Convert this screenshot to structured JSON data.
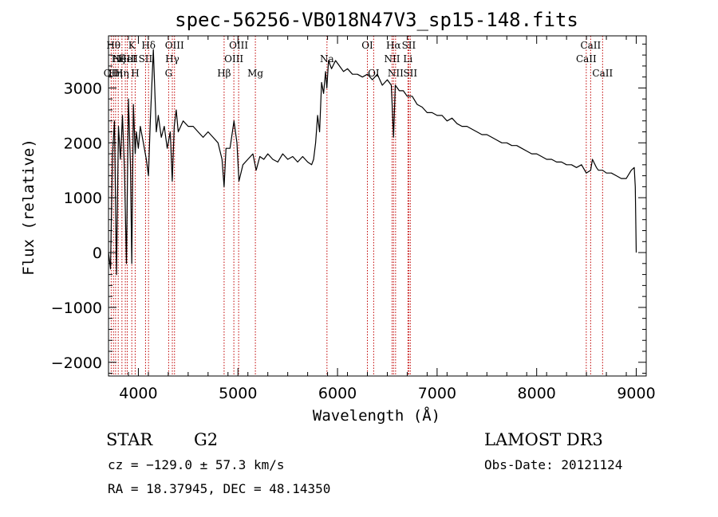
{
  "chart_data": {
    "type": "line",
    "title": "spec-56256-VB018N47V3_sp15-148.fits",
    "xlabel": "Wavelength (Å)",
    "ylabel": "Flux (relative)",
    "xlim": [
      3700,
      9100
    ],
    "ylim": [
      -2250,
      3950
    ],
    "x_ticks": [
      4000,
      5000,
      6000,
      7000,
      8000,
      9000
    ],
    "y_ticks": [
      -2000,
      -1000,
      0,
      1000,
      2000,
      3000
    ],
    "x_minor_step": 200,
    "y_minor_step": 200,
    "grid": false,
    "series": [
      {
        "name": "flux",
        "x": [
          3700,
          3720,
          3740,
          3760,
          3780,
          3800,
          3820,
          3840,
          3860,
          3880,
          3900,
          3920,
          3934,
          3950,
          3968,
          3980,
          4000,
          4020,
          4050,
          4080,
          4101,
          4120,
          4150,
          4180,
          4200,
          4230,
          4260,
          4290,
          4320,
          4340,
          4360,
          4380,
          4400,
          4450,
          4500,
          4550,
          4600,
          4650,
          4700,
          4750,
          4800,
          4840,
          4861,
          4880,
          4920,
          4960,
          4990,
          5010,
          5050,
          5100,
          5150,
          5183,
          5220,
          5260,
          5300,
          5350,
          5400,
          5450,
          5500,
          5550,
          5600,
          5650,
          5700,
          5740,
          5760,
          5780,
          5800,
          5820,
          5840,
          5860,
          5880,
          5893,
          5910,
          5940,
          5980,
          6020,
          6060,
          6100,
          6150,
          6200,
          6250,
          6300,
          6350,
          6400,
          6450,
          6500,
          6540,
          6563,
          6580,
          6620,
          6660,
          6700,
          6750,
          6800,
          6850,
          6900,
          6950,
          7000,
          7050,
          7100,
          7150,
          7200,
          7250,
          7300,
          7350,
          7400,
          7450,
          7500,
          7550,
          7600,
          7650,
          7700,
          7750,
          7800,
          7850,
          7900,
          7950,
          8000,
          8050,
          8100,
          8150,
          8200,
          8250,
          8300,
          8350,
          8400,
          8450,
          8498,
          8542,
          8560,
          8600,
          8620,
          8662,
          8700,
          8750,
          8800,
          8850,
          8900,
          8950,
          8980,
          8990,
          9000
        ],
        "values": [
          0,
          -300,
          1800,
          2400,
          -400,
          2300,
          1700,
          2500,
          1500,
          -200,
          2800,
          1600,
          -200,
          2700,
          1800,
          2200,
          1900,
          2300,
          2000,
          1700,
          1400,
          2400,
          3700,
          2200,
          2500,
          2100,
          2300,
          1900,
          2200,
          1300,
          2300,
          2600,
          2200,
          2400,
          2300,
          2300,
          2200,
          2100,
          2200,
          2100,
          2000,
          1700,
          1200,
          1900,
          1900,
          2400,
          2000,
          1300,
          1600,
          1700,
          1800,
          1500,
          1750,
          1700,
          1800,
          1700,
          1650,
          1800,
          1700,
          1750,
          1650,
          1750,
          1650,
          1600,
          1700,
          2000,
          2500,
          2200,
          3100,
          2900,
          3300,
          3000,
          3500,
          3350,
          3500,
          3400,
          3300,
          3350,
          3250,
          3250,
          3200,
          3250,
          3150,
          3250,
          3050,
          3150,
          3050,
          2100,
          3050,
          2950,
          2950,
          2850,
          2850,
          2700,
          2650,
          2550,
          2550,
          2500,
          2500,
          2400,
          2450,
          2350,
          2300,
          2300,
          2250,
          2200,
          2150,
          2150,
          2100,
          2050,
          2000,
          2000,
          1950,
          1950,
          1900,
          1850,
          1800,
          1800,
          1750,
          1700,
          1700,
          1650,
          1650,
          1600,
          1600,
          1550,
          1600,
          1450,
          1500,
          1700,
          1550,
          1500,
          1500,
          1450,
          1450,
          1400,
          1350,
          1350,
          1500,
          1550,
          1200,
          0
        ]
      }
    ],
    "line_markers": [
      {
        "w": 3727,
        "label": "OII",
        "row": 3
      },
      {
        "w": 3750,
        "label": "Hθ",
        "row": 1
      },
      {
        "w": 3771,
        "label": "Hη",
        "row": 3
      },
      {
        "w": 3798,
        "label": "Hζ",
        "row": 2
      },
      {
        "w": 3835,
        "label": "Hη",
        "row": 3
      },
      {
        "w": 3869,
        "label": "NeIII",
        "row": 2
      },
      {
        "w": 3889,
        "label": "HeI",
        "row": 2
      },
      {
        "w": 3934,
        "label": "K",
        "row": 1
      },
      {
        "w": 3968,
        "label": "H",
        "row": 3
      },
      {
        "w": 4072,
        "label": "SII",
        "row": 2
      },
      {
        "w": 4102,
        "label": "Hδ",
        "row": 1
      },
      {
        "w": 4304,
        "label": "G",
        "row": 3
      },
      {
        "w": 4341,
        "label": "Hγ",
        "row": 2
      },
      {
        "w": 4363,
        "label": "OIII",
        "row": 1
      },
      {
        "w": 4861,
        "label": "Hβ",
        "row": 3
      },
      {
        "w": 4959,
        "label": "OIII",
        "row": 2
      },
      {
        "w": 5007,
        "label": "OIII",
        "row": 1
      },
      {
        "w": 5175,
        "label": "Mg",
        "row": 3
      },
      {
        "w": 5894,
        "label": "Na",
        "row": 2
      },
      {
        "w": 6300,
        "label": "OI",
        "row": 1
      },
      {
        "w": 6363,
        "label": "OI",
        "row": 3
      },
      {
        "w": 6548,
        "label": "NII",
        "row": 2
      },
      {
        "w": 6563,
        "label": "Hα",
        "row": 1
      },
      {
        "w": 6583,
        "label": "NII",
        "row": 3
      },
      {
        "w": 6707,
        "label": "Li",
        "row": 2
      },
      {
        "w": 6716,
        "label": "SII",
        "row": 1
      },
      {
        "w": 6731,
        "label": "SII",
        "row": 3
      },
      {
        "w": 8498,
        "label": "CaII",
        "row": 2
      },
      {
        "w": 8542,
        "label": "CaII",
        "row": 1
      },
      {
        "w": 8662,
        "label": "CaII",
        "row": 3
      }
    ]
  },
  "info": {
    "class": "STAR",
    "subclass": "G2",
    "redshift": "cz = −129.0 ± 57.3 km/s",
    "coords": "RA =  18.37945, DEC =  48.14350",
    "survey": "LAMOST DR3",
    "obs_date": "Obs-Date: 20121124"
  }
}
